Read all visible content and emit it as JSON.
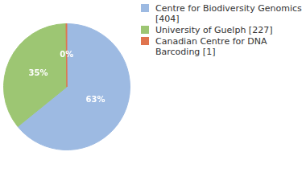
{
  "chart_data": {
    "type": "pie",
    "categories": [
      "Centre for Biodiversity Genomics [404]",
      "University of Guelph [227]",
      "Canadian Centre for DNA Barcoding [1]"
    ],
    "values": [
      63,
      35,
      0.2
    ],
    "value_labels": [
      "63%",
      "35%",
      "0%"
    ],
    "colors": [
      "#9dbae2",
      "#9dc673",
      "#e0744e"
    ],
    "data_labels": true,
    "legend": "right"
  }
}
